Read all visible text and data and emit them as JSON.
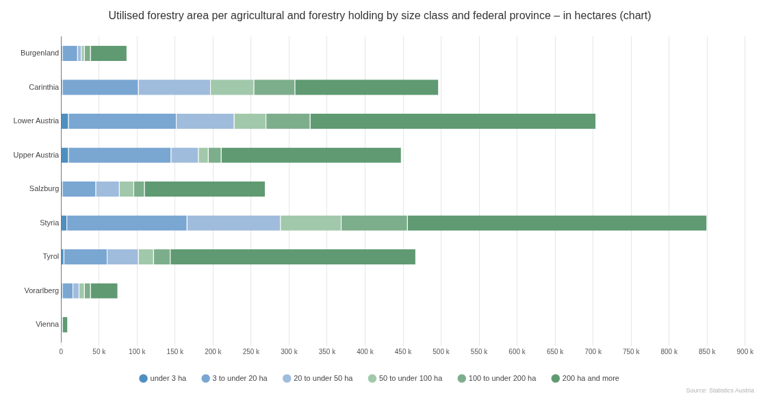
{
  "chart_data": {
    "type": "bar",
    "orientation": "horizontal",
    "stacked": true,
    "title": "Utilised forestry area per agricultural and forestry holding by size class and federal province – in hectares (chart)",
    "categories": [
      "Burgenland",
      "Carinthia",
      "Lower Austria",
      "Upper Austria",
      "Salzburg",
      "Styria",
      "Tyrol",
      "Vorarlberg",
      "Vienna"
    ],
    "series": [
      {
        "name": "under 3 ha",
        "color": "#4f8fc0",
        "values": [
          2000,
          2000,
          10000,
          10000,
          2000,
          8000,
          4000,
          2000,
          1000
        ]
      },
      {
        "name": "3 to under 20 ha",
        "color": "#7aa6d2",
        "values": [
          20000,
          100000,
          142000,
          135000,
          44000,
          158000,
          57000,
          14000,
          1000
        ]
      },
      {
        "name": "20 to under 50 ha",
        "color": "#a0bcdc",
        "values": [
          5000,
          95000,
          76000,
          36000,
          31000,
          123000,
          41000,
          8000,
          0
        ]
      },
      {
        "name": "50 to under 100 ha",
        "color": "#a2c8ab",
        "values": [
          4000,
          57000,
          42000,
          13000,
          19000,
          80000,
          20000,
          7000,
          0
        ]
      },
      {
        "name": "100 to under 200 ha",
        "color": "#7dae8c",
        "values": [
          8000,
          54000,
          58000,
          17000,
          14000,
          87000,
          22000,
          8000,
          0
        ]
      },
      {
        "name": "200 ha and more",
        "color": "#5f9a72",
        "values": [
          48000,
          189000,
          376000,
          237000,
          159000,
          394000,
          323000,
          36000,
          7000
        ]
      }
    ],
    "xlim": [
      0,
      900000
    ],
    "xticks": [
      0,
      {
        "value": 50000,
        "label": "50 k"
      },
      {
        "value": 100000,
        "label": "100 k"
      },
      {
        "value": 150000,
        "label": "150 k"
      },
      {
        "value": 200000,
        "label": "200 k"
      },
      {
        "value": 250000,
        "label": "250 k"
      },
      {
        "value": 300000,
        "label": "300 k"
      },
      {
        "value": 350000,
        "label": "350 k"
      },
      {
        "value": 400000,
        "label": "400 k"
      },
      {
        "value": 450000,
        "label": "450 k"
      },
      {
        "value": 500000,
        "label": "500 k"
      },
      {
        "value": 550000,
        "label": "550 k"
      },
      {
        "value": 600000,
        "label": "600 k"
      },
      {
        "value": 650000,
        "label": "650 k"
      },
      {
        "value": 700000,
        "label": "700 k"
      },
      {
        "value": 750000,
        "label": "750 k"
      },
      {
        "value": 800000,
        "label": "800 k"
      },
      {
        "value": 850000,
        "label": "850 k"
      },
      {
        "value": 900000,
        "label": "900 k"
      }
    ],
    "grid": "x",
    "legend": "bottom",
    "annotations": [
      "Source: Statistics Austria"
    ]
  }
}
